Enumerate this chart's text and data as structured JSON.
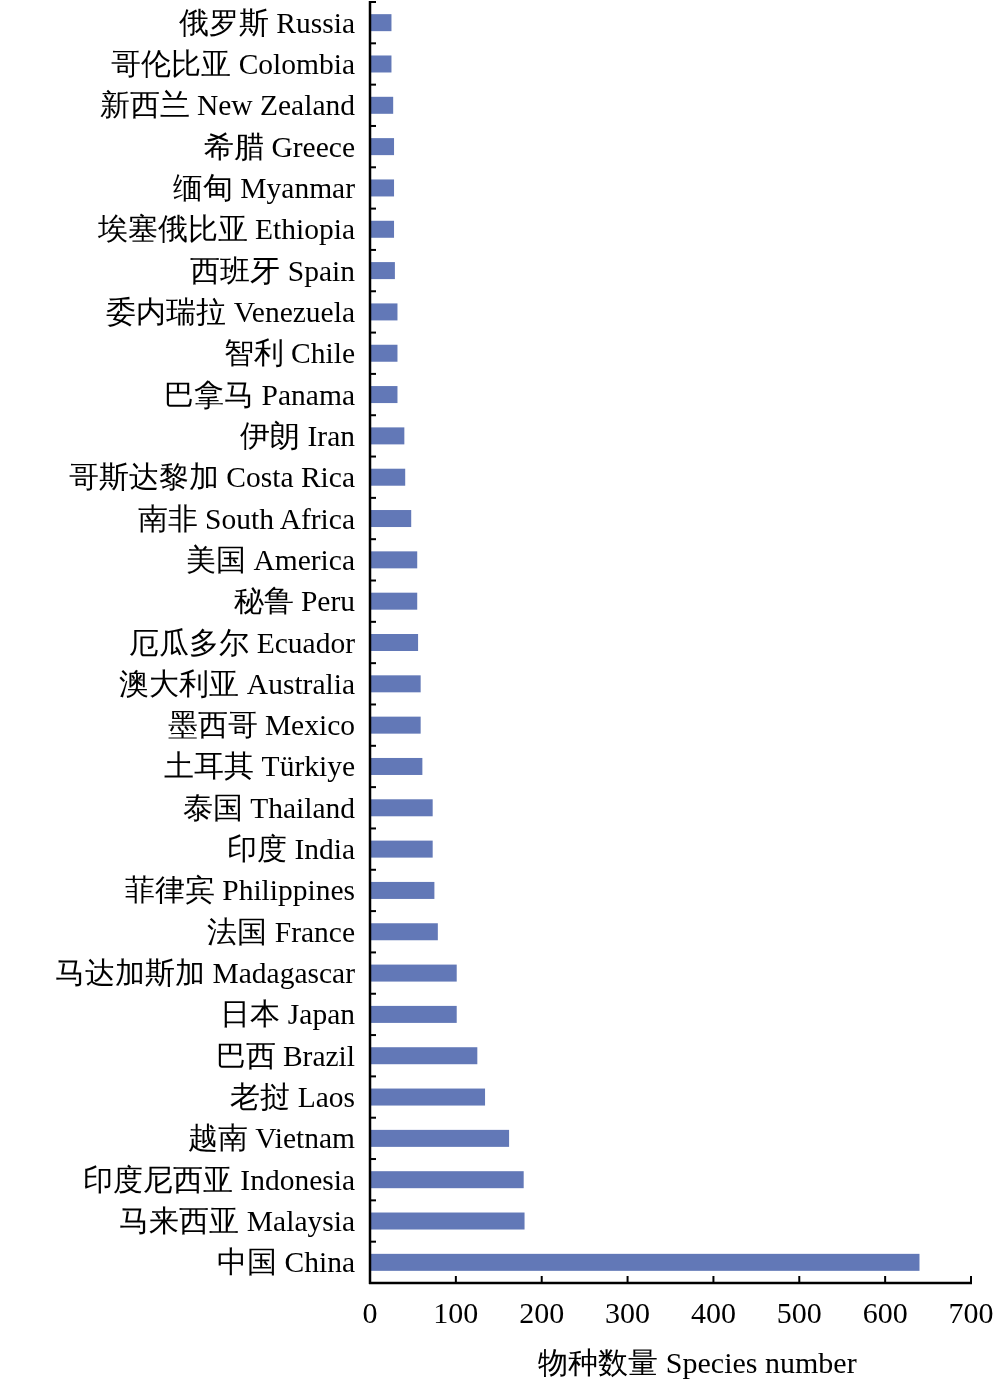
{
  "chart_data": {
    "type": "bar",
    "orientation": "horizontal",
    "categories": [
      "俄罗斯 Russia",
      "哥伦比亚 Colombia",
      "新西兰 New Zealand",
      "希腊 Greece",
      "缅甸 Myanmar",
      "埃塞俄比亚 Ethiopia",
      "西班牙 Spain",
      "委内瑞拉 Venezuela",
      "智利 Chile",
      "巴拿马 Panama",
      "伊朗 Iran",
      "哥斯达黎加 Costa Rica",
      "南非 South Africa",
      "美国 America",
      "秘鲁 Peru",
      "厄瓜多尔 Ecuador",
      "澳大利亚 Australia",
      "墨西哥 Mexico",
      "土耳其 Türkiye",
      "泰国 Thailand",
      "印度 India",
      "菲律宾 Philippines",
      "法国 France",
      "马达加斯加 Madagascar",
      "日本 Japan",
      "巴西 Brazil",
      "老挝 Laos",
      "越南 Vietnam",
      "印度尼西亚 Indonesia",
      "马来西亚 Malaysia",
      "中国 China"
    ],
    "values": [
      25,
      25,
      27,
      28,
      28,
      28,
      29,
      32,
      32,
      32,
      40,
      41,
      48,
      55,
      55,
      56,
      59,
      59,
      61,
      73,
      73,
      75,
      79,
      101,
      101,
      125,
      134,
      162,
      179,
      180,
      640
    ],
    "color": "#6278b7",
    "xlim": [
      0,
      700
    ],
    "xticks": [
      0,
      100,
      200,
      300,
      400,
      500,
      600,
      700
    ],
    "xlabel": "物种数量 Species number"
  }
}
